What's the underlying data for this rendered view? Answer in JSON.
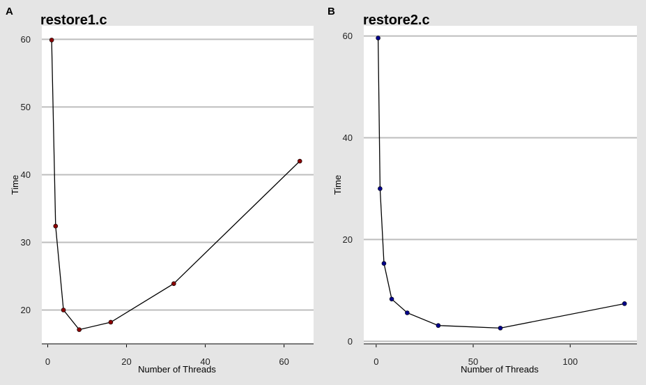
{
  "chart_data": [
    {
      "type": "line",
      "panel_label": "A",
      "title": "restore1.c",
      "xlabel": "Number of Threads",
      "ylabel": "Time",
      "xlim": [
        -1.5,
        67.5
      ],
      "ylim": [
        15,
        62
      ],
      "xticks": [
        0,
        20,
        40,
        60
      ],
      "yticks": [
        20,
        30,
        40,
        50,
        60
      ],
      "grid": "horizontal",
      "point_color": "#8b0000",
      "series": [
        {
          "x": [
            1,
            2,
            4,
            8,
            16,
            32,
            64
          ],
          "y": [
            59.9,
            32.4,
            20.0,
            17.1,
            18.2,
            23.9,
            42.0
          ]
        }
      ]
    },
    {
      "type": "line",
      "panel_label": "B",
      "title": "restore2.c",
      "xlabel": "Number of Threads",
      "ylabel": "Time",
      "xlim": [
        -6.4,
        134.4
      ],
      "ylim": [
        -0.5,
        62
      ],
      "xticks": [
        0,
        50,
        100
      ],
      "yticks": [
        0,
        20,
        40,
        60
      ],
      "grid": "horizontal",
      "point_color": "#00008b",
      "series": [
        {
          "x": [
            1,
            2,
            4,
            8,
            16,
            32,
            64,
            128
          ],
          "y": [
            59.6,
            30.0,
            15.3,
            8.3,
            5.6,
            3.1,
            2.6,
            7.4
          ]
        }
      ]
    }
  ]
}
